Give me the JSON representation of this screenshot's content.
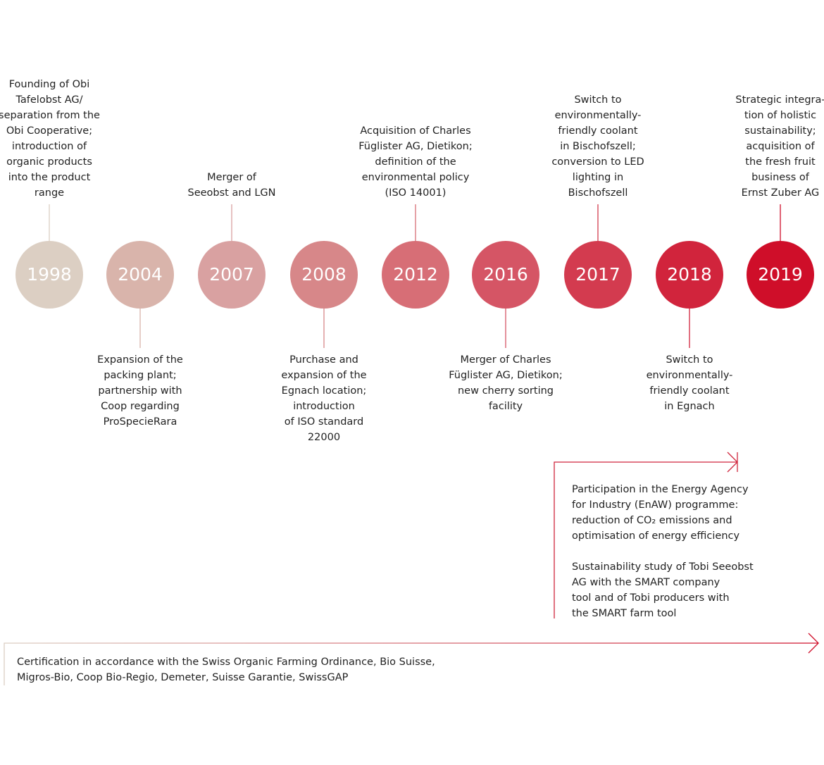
{
  "timeline": {
    "events": [
      {
        "year": "1998",
        "color": "#dccfc3",
        "lines": [
          "Founding of Obi",
          "Tafelobst AG/",
          "separation from the",
          "Obi Cooperative;",
          "introduction of",
          "organic products",
          "into the product",
          "range"
        ]
      },
      {
        "year": "2004",
        "color": "#d9b4ab",
        "lines": [
          "Expansion of the",
          "packing plant;",
          "partnership with",
          "Coop regarding",
          "ProSpecieRara"
        ]
      },
      {
        "year": "2007",
        "color": "#d9a1a1",
        "lines": [
          "Merger of",
          "Seeobst and LGN"
        ]
      },
      {
        "year": "2008",
        "color": "#d78789",
        "lines": [
          "Purchase and",
          "expansion of the",
          "Egnach location;",
          "introduction",
          "of ISO standard",
          "22000"
        ]
      },
      {
        "year": "2012",
        "color": "#d76e76",
        "lines": [
          "Acquisition of Charles",
          "Füglister AG, Dietikon;",
          "definition of the",
          "environmental policy",
          "(ISO 14001)"
        ]
      },
      {
        "year": "2016",
        "color": "#d55565",
        "lines": [
          "Merger of Charles",
          "Füglister AG, Dietikon;",
          "new cherry sorting",
          "facility"
        ]
      },
      {
        "year": "2017",
        "color": "#d33b4f",
        "lines": [
          "Switch to",
          "environmentally-",
          "friendly coolant",
          "in Bischofszell;",
          "conversion to LED",
          "lighting in",
          "Bischofszell"
        ]
      },
      {
        "year": "2018",
        "color": "#d1243c",
        "lines": [
          "Switch to",
          "environmentally-",
          "friendly coolant",
          "in Egnach"
        ]
      },
      {
        "year": "2019",
        "color": "#cf0e29",
        "lines": [
          "Strategic integra-",
          "tion of holistic",
          "sustainability;",
          "acquisition of",
          "the fresh fruit",
          "business of",
          "Ernst Zuber AG"
        ]
      }
    ]
  },
  "ongoing": {
    "paragraphs": [
      [
        "Participation in the Energy Agency",
        "for Industry (EnAW) programme:",
        "reduction of CO₂ emissions and",
        "optimisation of energy efficiency"
      ],
      [
        "Sustainability study of Tobi Seeobst",
        "AG with the SMART company",
        "tool and of Tobi producers with",
        "the SMART farm tool"
      ]
    ]
  },
  "certification": {
    "lines": [
      "Certification in accordance with the Swiss Organic Farming Ordinance, Bio Suisse,",
      "Migros-Bio, Coop Bio-Regio, Demeter, Suisse Garantie, SwissGAP"
    ]
  }
}
